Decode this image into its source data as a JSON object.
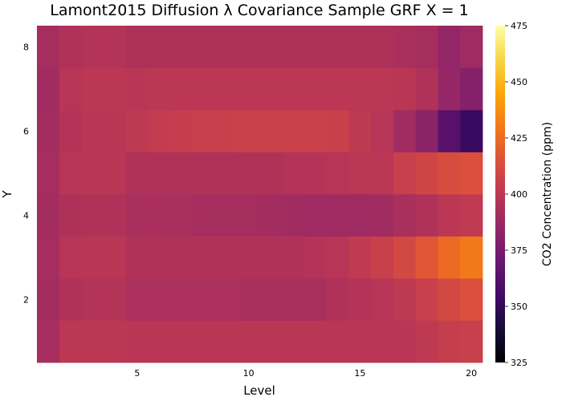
{
  "chart_data": {
    "type": "heatmap",
    "title": "Lamont2015 Diffusion λ Covariance Sample GRF X = 1",
    "xlabel": "Level",
    "ylabel": "Y",
    "x_ticks": [
      5,
      10,
      15,
      20
    ],
    "y_ticks": [
      2,
      4,
      6,
      8
    ],
    "x_range": [
      0.5,
      20.5
    ],
    "y_range": [
      0.5,
      8.5
    ],
    "colorbar": {
      "label": "CO2 Concentration (ppm)",
      "min": 325,
      "max": 475,
      "ticks": [
        325,
        350,
        375,
        400,
        425,
        450,
        475
      ],
      "colormap": "inferno"
    },
    "levels": [
      1,
      2,
      3,
      4,
      5,
      6,
      7,
      8,
      9,
      10,
      11,
      12,
      13,
      14,
      15,
      16,
      17,
      18,
      19,
      20
    ],
    "y": [
      1,
      2,
      3,
      4,
      5,
      6,
      7,
      8
    ],
    "values": [
      [
        392,
        400,
        400,
        400,
        399,
        399,
        399,
        399,
        399,
        399,
        399,
        399,
        399,
        399,
        399,
        399,
        399,
        401,
        404,
        405
      ],
      [
        391,
        396,
        397,
        397,
        394,
        394,
        394,
        394,
        394,
        393,
        393,
        393,
        393,
        396,
        397,
        398,
        401,
        405,
        410,
        414
      ],
      [
        392,
        398,
        399,
        399,
        396,
        396,
        396,
        396,
        396,
        396,
        396,
        396,
        397,
        398,
        402,
        405,
        410,
        417,
        425,
        430
      ],
      [
        391,
        395,
        396,
        396,
        393,
        393,
        393,
        392,
        392,
        392,
        391,
        390,
        389,
        389,
        389,
        390,
        393,
        396,
        400,
        402
      ],
      [
        392,
        398,
        399,
        399,
        396,
        396,
        396,
        396,
        396,
        396,
        396,
        397,
        397,
        398,
        400,
        400,
        405,
        408,
        412,
        414
      ],
      [
        391,
        397,
        399,
        399,
        401,
        403,
        404,
        405,
        405,
        406,
        406,
        406,
        406,
        405,
        401,
        398,
        390,
        382,
        363,
        352
      ],
      [
        390,
        398,
        400,
        400,
        399,
        400,
        400,
        400,
        400,
        400,
        400,
        400,
        400,
        400,
        400,
        400,
        399,
        396,
        386,
        380
      ],
      [
        392,
        396,
        397,
        397,
        395,
        395,
        395,
        395,
        395,
        395,
        395,
        395,
        395,
        395,
        395,
        395,
        393,
        392,
        385,
        389
      ]
    ]
  }
}
